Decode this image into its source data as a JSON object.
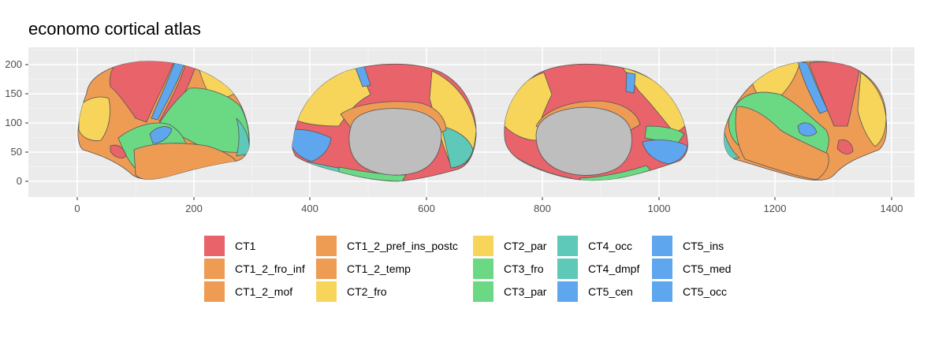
{
  "title": "economo cortical atlas",
  "x_ticks": [
    "0",
    "200",
    "400",
    "600",
    "800",
    "1000",
    "1200",
    "1400"
  ],
  "y_ticks": [
    "200",
    "150",
    "100",
    "50",
    "0"
  ],
  "legend": [
    {
      "label": "CT1",
      "color": "#E8636A"
    },
    {
      "label": "CT1_2_fro_inf",
      "color": "#EE9B54"
    },
    {
      "label": "CT1_2_mof",
      "color": "#EE9B54"
    },
    {
      "label": "CT1_2_pref_ins_postc",
      "color": "#EE9B54"
    },
    {
      "label": "CT1_2_temp",
      "color": "#EE9B54"
    },
    {
      "label": "CT2_fro",
      "color": "#F7D55A"
    },
    {
      "label": "CT2_par",
      "color": "#F7D55A"
    },
    {
      "label": "CT3_fro",
      "color": "#6BD984"
    },
    {
      "label": "CT3_par",
      "color": "#6BD984"
    },
    {
      "label": "CT4_occ",
      "color": "#5EC9B8"
    },
    {
      "label": "CT4_dmpf",
      "color": "#5EC9B8"
    },
    {
      "label": "CT5_cen",
      "color": "#5EA7EE"
    },
    {
      "label": "CT5_ins",
      "color": "#5EA7EE"
    },
    {
      "label": "CT5_med",
      "color": "#5EA7EE"
    },
    {
      "label": "CT5_occ",
      "color": "#5EA7EE"
    }
  ],
  "colors": {
    "CT1": "#E8636A",
    "CT1_2": "#EE9B54",
    "CT2": "#F7D55A",
    "CT3": "#6BD984",
    "CT4": "#5EC9B8",
    "CT5": "#5EA7EE",
    "medial_wall": "#BEBEBE",
    "panel_bg": "#EBEBEB"
  },
  "views": [
    "lateral-left",
    "medial-left",
    "medial-right",
    "lateral-right"
  ]
}
